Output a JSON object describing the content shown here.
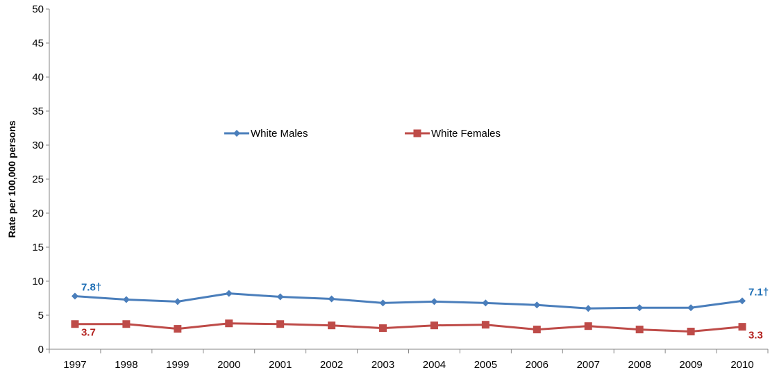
{
  "chart_data": {
    "type": "line",
    "title": "",
    "xlabel": "",
    "ylabel": "Rate per 100,000 persons",
    "ylim": [
      0,
      50
    ],
    "yticks": [
      0,
      5,
      10,
      15,
      20,
      25,
      30,
      35,
      40,
      45,
      50
    ],
    "grid": false,
    "legend_position": "center, inside plot",
    "categories": [
      "1997",
      "1998",
      "1999",
      "2000",
      "2001",
      "2002",
      "2003",
      "2004",
      "2005",
      "2006",
      "2007",
      "2008",
      "2009",
      "2010"
    ],
    "series": [
      {
        "name": "White Males",
        "color": "#4A7EBB",
        "marker": "diamond",
        "values": [
          7.8,
          7.3,
          7.0,
          8.2,
          7.7,
          7.4,
          6.8,
          7.0,
          6.8,
          6.5,
          6.0,
          6.1,
          6.1,
          7.1
        ],
        "data_labels": [
          {
            "index": 0,
            "text": "7.8†"
          },
          {
            "index": 13,
            "text": "7.1†"
          }
        ]
      },
      {
        "name": "White Females",
        "color": "#BE4B48",
        "marker": "square",
        "values": [
          3.7,
          3.7,
          3.0,
          3.8,
          3.7,
          3.5,
          3.1,
          3.5,
          3.6,
          2.9,
          3.4,
          2.9,
          2.6,
          3.3
        ],
        "data_labels": [
          {
            "index": 0,
            "text": "3.7"
          },
          {
            "index": 13,
            "text": "3.3"
          }
        ]
      }
    ]
  }
}
